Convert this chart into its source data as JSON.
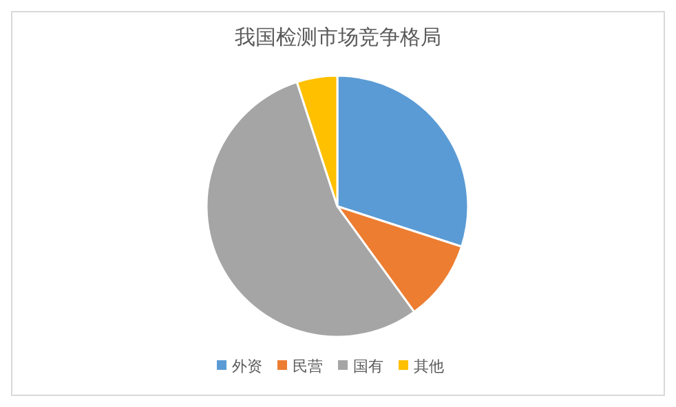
{
  "chart_data": {
    "type": "pie",
    "title": "我国检测市场竞争格局",
    "categories": [
      "外资",
      "民营",
      "国有",
      "其他"
    ],
    "values": [
      30,
      10,
      55,
      5
    ],
    "colors": [
      "#5b9bd5",
      "#ed7d31",
      "#a5a5a5",
      "#ffc000"
    ],
    "legend": "bottom"
  }
}
